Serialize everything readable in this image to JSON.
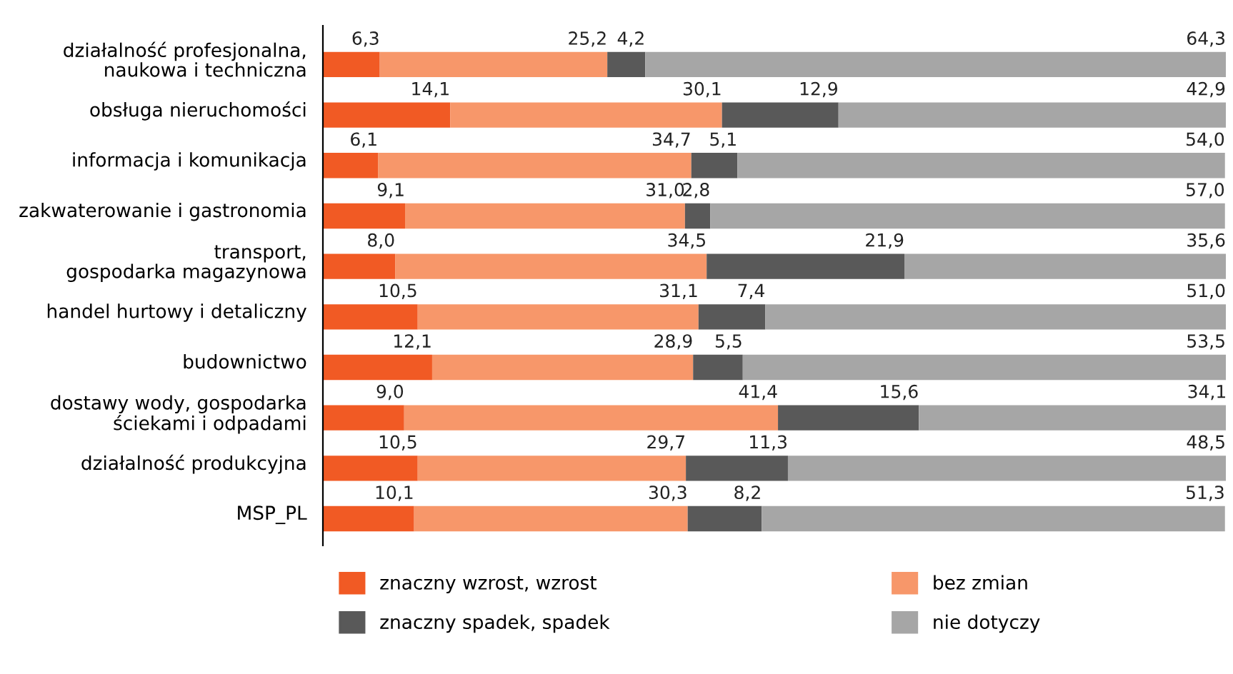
{
  "chart_data": {
    "type": "bar",
    "orientation": "horizontal",
    "stacked": true,
    "legend": "bottom",
    "tick_labels": "y",
    "grid": false,
    "xlim": [
      0,
      100
    ],
    "categories": [
      "działalność profesjonalna,\nnaukowa i techniczna",
      "obsługa nieruchomości",
      "informacja i komunikacja",
      "zakwaterowanie i gastronomia",
      "transport,\ngospodarka magazynowa",
      "handel hurtowy i detaliczny",
      "budownictwo",
      "dostawy wody, gospodarka\nściekami i odpadami",
      "działalność produkcyjna",
      "MSP_PL"
    ],
    "series": [
      {
        "name": "znaczny wzrost, wzrost",
        "color": "#f15a24",
        "values": [
          6.3,
          14.1,
          6.1,
          9.1,
          8.0,
          10.5,
          12.1,
          9.0,
          10.5,
          10.1
        ],
        "value_labels": [
          "6,3",
          "14,1",
          "6,1",
          "9,1",
          "8,0",
          "10,5",
          "12,1",
          "9,0",
          "10,5",
          "10,1"
        ]
      },
      {
        "name": "bez zmian",
        "color": "#f7976a",
        "values": [
          25.2,
          30.1,
          34.7,
          31.0,
          34.5,
          31.1,
          28.9,
          41.4,
          29.7,
          30.3
        ],
        "value_labels": [
          "25,2",
          "30,1",
          "34,7",
          "31,0",
          "34,5",
          "31,1",
          "28,9",
          "41,4",
          "29,7",
          "30,3"
        ]
      },
      {
        "name": "znaczny spadek, spadek",
        "color": "#595959",
        "values": [
          4.2,
          12.9,
          5.1,
          2.8,
          21.9,
          7.4,
          5.5,
          15.6,
          11.3,
          8.2
        ],
        "value_labels": [
          "4,2",
          "12,9",
          "5,1",
          "2,8",
          "21,9",
          "7,4",
          "5,5",
          "15,6",
          "11,3",
          "8,2"
        ]
      },
      {
        "name": "nie dotyczy",
        "color": "#a6a6a6",
        "values": [
          64.3,
          42.9,
          54.0,
          57.0,
          35.6,
          51.0,
          53.5,
          34.1,
          48.5,
          51.3
        ],
        "value_labels": [
          "64,3",
          "42,9",
          "54,0",
          "57,0",
          "35,6",
          "51,0",
          "53,5",
          "34,1",
          "48,5",
          "51,3"
        ]
      }
    ]
  }
}
